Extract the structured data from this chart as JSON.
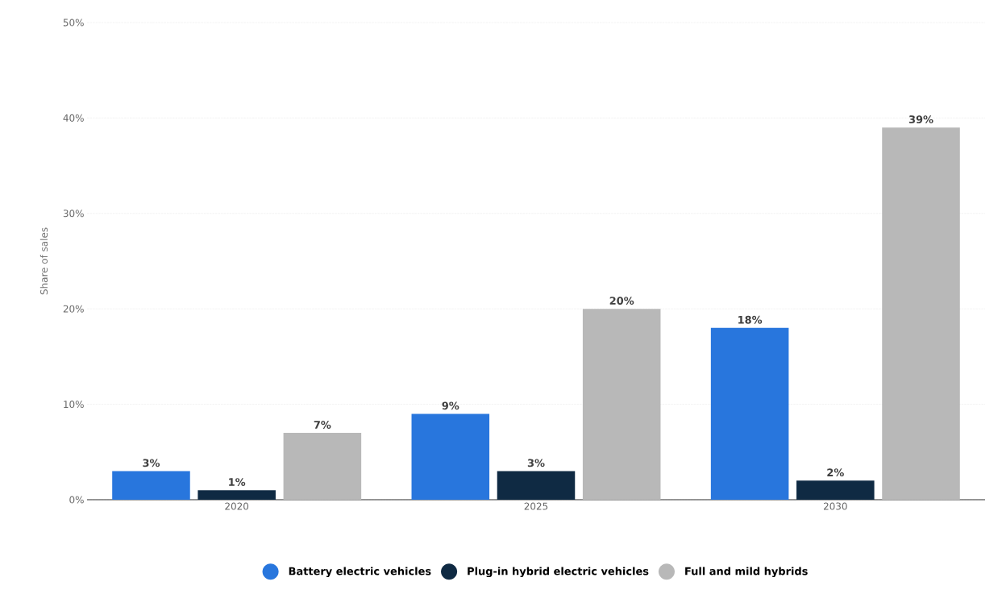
{
  "chart_data": {
    "type": "bar",
    "ylabel": "Share of sales",
    "categories": [
      "2020",
      "2025",
      "2030"
    ],
    "series": [
      {
        "name": "Battery electric vehicles",
        "color": "#2876dd",
        "values": [
          3,
          9,
          18
        ],
        "value_labels": [
          "3%",
          "9%",
          "18%"
        ]
      },
      {
        "name": "Plug-in hybrid electric vehicles",
        "color": "#0f2a43",
        "values": [
          1,
          3,
          2
        ],
        "value_labels": [
          "1%",
          "3%",
          "2%"
        ]
      },
      {
        "name": "Full and mild hybrids",
        "color": "#b8b8b8",
        "values": [
          7,
          20,
          39
        ],
        "value_labels": [
          "7%",
          "20%",
          "39%"
        ]
      }
    ],
    "ylim": [
      0,
      50
    ],
    "yticks": [
      {
        "value": 0,
        "label": "0%"
      },
      {
        "value": 10,
        "label": "10%"
      },
      {
        "value": 20,
        "label": "20%"
      },
      {
        "value": 30,
        "label": "30%"
      },
      {
        "value": 40,
        "label": "40%"
      },
      {
        "value": 50,
        "label": "50%"
      }
    ],
    "grid": "y",
    "legend": "bottom"
  }
}
